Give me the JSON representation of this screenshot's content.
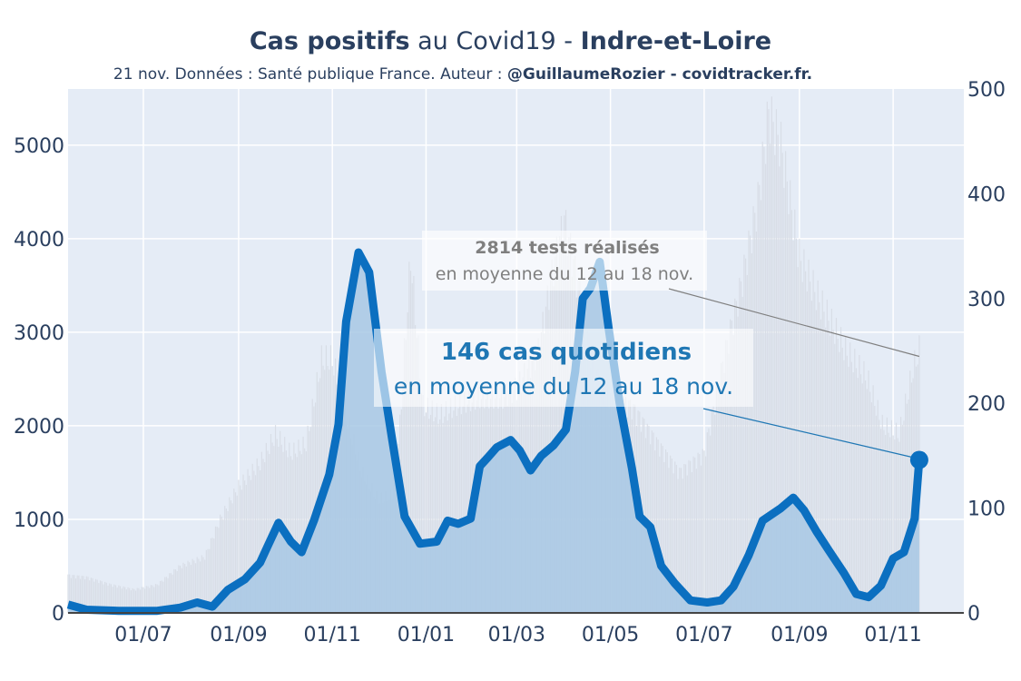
{
  "header": {
    "title_bold_1": "Cas positifs",
    "title_mid": " au Covid19 - ",
    "title_bold_2": "Indre-et-Loire",
    "subtitle_plain": "21 nov. Données : Santé publique France. Auteur : ",
    "subtitle_bold": "@GuillaumeRozier - covidtracker.fr."
  },
  "colors": {
    "plot_bg": "#e5ecf6",
    "grid": "#ffffff",
    "tests_bars": "#d8dde6",
    "cases_area": "#a8c8e4",
    "cases_line": "#0b6fc0",
    "annotation_tests": "#7f7f7f",
    "annotation_cases": "#1f77b4"
  },
  "annotations": {
    "tests_bold": "2814 tests réalisés",
    "tests_text": "en moyenne du 12 au 18 nov.",
    "cases_bold": "146 cas quotidiens",
    "cases_text": "en moyenne du 12 au 18 nov."
  },
  "chart_data": {
    "type": "line",
    "title": "Cas positifs au Covid19 - Indre-et-Loire",
    "x_tick_labels": [
      "01/07",
      "01/09",
      "01/11",
      "01/01",
      "01/03",
      "01/05",
      "01/07",
      "01/09",
      "01/11"
    ],
    "x_tick_dates": [
      "2020-07-01",
      "2020-09-01",
      "2020-11-01",
      "2021-01-01",
      "2021-03-01",
      "2021-05-01",
      "2021-07-01",
      "2021-09-01",
      "2021-11-01"
    ],
    "xlim": [
      "2020-05-13",
      "2021-12-17"
    ],
    "y_left": {
      "ylim": [
        0,
        5600
      ],
      "ticks": [
        0,
        1000,
        2000,
        3000,
        4000,
        5000
      ],
      "axis": "tests (barres)"
    },
    "y_right": {
      "ylim": [
        0,
        500
      ],
      "ticks": [
        0,
        100,
        200,
        300,
        400,
        500
      ],
      "axis": "cas (ligne)"
    },
    "grid": true,
    "series": [
      {
        "name": "tests",
        "axis": "left",
        "style": "bars",
        "points": [
          [
            "2020-05-13",
            400
          ],
          [
            "2020-05-25",
            380
          ],
          [
            "2020-06-10",
            300
          ],
          [
            "2020-06-25",
            250
          ],
          [
            "2020-07-10",
            300
          ],
          [
            "2020-07-25",
            500
          ],
          [
            "2020-08-10",
            600
          ],
          [
            "2020-08-20",
            1000
          ],
          [
            "2020-09-01",
            1350
          ],
          [
            "2020-09-15",
            1600
          ],
          [
            "2020-09-25",
            1900
          ],
          [
            "2020-10-05",
            1700
          ],
          [
            "2020-10-15",
            1800
          ],
          [
            "2020-10-25",
            2700
          ],
          [
            "2020-11-01",
            2700
          ],
          [
            "2020-11-10",
            2100
          ],
          [
            "2020-11-20",
            1500
          ],
          [
            "2020-12-01",
            1200
          ],
          [
            "2020-12-10",
            1250
          ],
          [
            "2020-12-15",
            2000
          ],
          [
            "2020-12-22",
            3800
          ],
          [
            "2020-12-30",
            2200
          ],
          [
            "2021-01-10",
            2100
          ],
          [
            "2021-01-20",
            2200
          ],
          [
            "2021-02-05",
            2300
          ],
          [
            "2021-02-20",
            2300
          ],
          [
            "2021-03-01",
            2400
          ],
          [
            "2021-03-15",
            2800
          ],
          [
            "2021-03-25",
            3700
          ],
          [
            "2021-04-01",
            4200
          ],
          [
            "2021-04-10",
            3500
          ],
          [
            "2021-04-20",
            2600
          ],
          [
            "2021-05-01",
            2300
          ],
          [
            "2021-05-15",
            2200
          ],
          [
            "2021-06-01",
            1800
          ],
          [
            "2021-06-15",
            1500
          ],
          [
            "2021-07-01",
            1700
          ],
          [
            "2021-07-15",
            2800
          ],
          [
            "2021-07-25",
            3500
          ],
          [
            "2021-08-05",
            4400
          ],
          [
            "2021-08-12",
            5350
          ],
          [
            "2021-08-20",
            5000
          ],
          [
            "2021-09-01",
            3800
          ],
          [
            "2021-09-15",
            3300
          ],
          [
            "2021-10-01",
            2800
          ],
          [
            "2021-10-15",
            2500
          ],
          [
            "2021-10-25",
            2000
          ],
          [
            "2021-11-05",
            1900
          ],
          [
            "2021-11-14",
            2600
          ],
          [
            "2021-11-18",
            2800
          ]
        ]
      },
      {
        "name": "cas",
        "axis": "right",
        "style": "line",
        "points": [
          [
            "2020-05-13",
            8
          ],
          [
            "2020-05-25",
            3
          ],
          [
            "2020-06-15",
            2
          ],
          [
            "2020-07-10",
            2
          ],
          [
            "2020-07-25",
            5
          ],
          [
            "2020-08-05",
            10
          ],
          [
            "2020-08-15",
            6
          ],
          [
            "2020-08-25",
            22
          ],
          [
            "2020-09-05",
            32
          ],
          [
            "2020-09-15",
            48
          ],
          [
            "2020-09-20",
            64
          ],
          [
            "2020-09-27",
            86
          ],
          [
            "2020-10-05",
            68
          ],
          [
            "2020-10-12",
            58
          ],
          [
            "2020-10-20",
            88
          ],
          [
            "2020-10-30",
            132
          ],
          [
            "2020-11-05",
            180
          ],
          [
            "2020-11-10",
            278
          ],
          [
            "2020-11-18",
            344
          ],
          [
            "2020-11-25",
            325
          ],
          [
            "2020-12-03",
            230
          ],
          [
            "2020-12-10",
            165
          ],
          [
            "2020-12-18",
            92
          ],
          [
            "2020-12-28",
            66
          ],
          [
            "2021-01-08",
            68
          ],
          [
            "2021-01-15",
            88
          ],
          [
            "2021-01-22",
            85
          ],
          [
            "2021-01-30",
            90
          ],
          [
            "2021-02-05",
            140
          ],
          [
            "2021-02-10",
            148
          ],
          [
            "2021-02-16",
            158
          ],
          [
            "2021-02-25",
            165
          ],
          [
            "2021-03-03",
            155
          ],
          [
            "2021-03-10",
            136
          ],
          [
            "2021-03-17",
            150
          ],
          [
            "2021-03-25",
            160
          ],
          [
            "2021-04-02",
            175
          ],
          [
            "2021-04-08",
            230
          ],
          [
            "2021-04-13",
            300
          ],
          [
            "2021-04-18",
            310
          ],
          [
            "2021-04-24",
            335
          ],
          [
            "2021-04-30",
            270
          ],
          [
            "2021-05-07",
            200
          ],
          [
            "2021-05-15",
            138
          ],
          [
            "2021-05-20",
            92
          ],
          [
            "2021-05-27",
            82
          ],
          [
            "2021-06-03",
            45
          ],
          [
            "2021-06-12",
            28
          ],
          [
            "2021-06-22",
            12
          ],
          [
            "2021-07-03",
            10
          ],
          [
            "2021-07-12",
            12
          ],
          [
            "2021-07-20",
            25
          ],
          [
            "2021-07-30",
            55
          ],
          [
            "2021-08-08",
            88
          ],
          [
            "2021-08-20",
            100
          ],
          [
            "2021-08-28",
            110
          ],
          [
            "2021-09-04",
            98
          ],
          [
            "2021-09-12",
            78
          ],
          [
            "2021-09-20",
            60
          ],
          [
            "2021-09-30",
            38
          ],
          [
            "2021-10-08",
            18
          ],
          [
            "2021-10-16",
            15
          ],
          [
            "2021-10-24",
            26
          ],
          [
            "2021-11-01",
            52
          ],
          [
            "2021-11-08",
            58
          ],
          [
            "2021-11-15",
            90
          ],
          [
            "2021-11-18",
            146
          ]
        ]
      }
    ]
  }
}
